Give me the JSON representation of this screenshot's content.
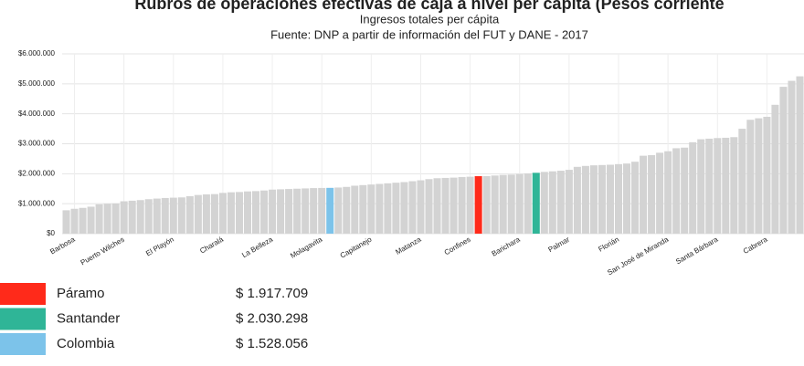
{
  "chart_data": {
    "type": "bar",
    "title": "Rubros de operaciones efectivas de caja a nivel per cápita (Pesos corriente",
    "subtitle": "Ingresos totales per cápita",
    "source": "Fuente: DNP a partir de información del FUT y DANE - 2017",
    "categories": [
      null,
      "Barbosa",
      null,
      null,
      null,
      null,
      null,
      "Puerto Wilches",
      null,
      null,
      null,
      null,
      null,
      "El Playón",
      null,
      null,
      null,
      null,
      null,
      "Charalá",
      null,
      null,
      null,
      null,
      null,
      "La Belleza",
      null,
      null,
      null,
      null,
      null,
      "Molagavita",
      null,
      null,
      null,
      null,
      null,
      "Capitanejo",
      null,
      null,
      null,
      null,
      null,
      "Matanza",
      null,
      null,
      null,
      null,
      null,
      "Confines",
      null,
      null,
      null,
      null,
      null,
      "Barichara",
      null,
      null,
      null,
      null,
      null,
      "Palmar",
      null,
      null,
      null,
      null,
      null,
      "Florián",
      null,
      null,
      null,
      null,
      null,
      "San José de Miranda",
      null,
      null,
      null,
      null,
      null,
      "Santa Bárbara",
      null,
      null,
      null,
      null,
      null,
      "Cabrera",
      null,
      null,
      null,
      null
    ],
    "values": [
      780000,
      830000,
      860000,
      900000,
      980000,
      1000000,
      1010000,
      1080000,
      1100000,
      1120000,
      1150000,
      1170000,
      1190000,
      1200000,
      1210000,
      1250000,
      1290000,
      1310000,
      1320000,
      1360000,
      1380000,
      1390000,
      1410000,
      1420000,
      1440000,
      1470000,
      1480000,
      1490000,
      1500000,
      1510000,
      1520000,
      1525000,
      1528056,
      1540000,
      1560000,
      1600000,
      1620000,
      1640000,
      1660000,
      1680000,
      1700000,
      1720000,
      1750000,
      1780000,
      1820000,
      1850000,
      1860000,
      1870000,
      1890000,
      1900000,
      1917709,
      1920000,
      1940000,
      1960000,
      1970000,
      1990000,
      2010000,
      2030298,
      2060000,
      2080000,
      2100000,
      2130000,
      2230000,
      2260000,
      2280000,
      2290000,
      2300000,
      2320000,
      2340000,
      2400000,
      2600000,
      2620000,
      2700000,
      2750000,
      2850000,
      2870000,
      3050000,
      3150000,
      3170000,
      3190000,
      3200000,
      3220000,
      3500000,
      3800000,
      3850000,
      3900000,
      4300000,
      4900000,
      5100000,
      5250000
    ],
    "colors": [
      "#d3d3d3",
      "#d3d3d3",
      "#d3d3d3",
      "#d3d3d3",
      "#d3d3d3",
      "#d3d3d3",
      "#d3d3d3",
      "#d3d3d3",
      "#d3d3d3",
      "#d3d3d3",
      "#d3d3d3",
      "#d3d3d3",
      "#d3d3d3",
      "#d3d3d3",
      "#d3d3d3",
      "#d3d3d3",
      "#d3d3d3",
      "#d3d3d3",
      "#d3d3d3",
      "#d3d3d3",
      "#d3d3d3",
      "#d3d3d3",
      "#d3d3d3",
      "#d3d3d3",
      "#d3d3d3",
      "#d3d3d3",
      "#d3d3d3",
      "#d3d3d3",
      "#d3d3d3",
      "#d3d3d3",
      "#d3d3d3",
      "#d3d3d3",
      "#7cc3ea",
      "#d3d3d3",
      "#d3d3d3",
      "#d3d3d3",
      "#d3d3d3",
      "#d3d3d3",
      "#d3d3d3",
      "#d3d3d3",
      "#d3d3d3",
      "#d3d3d3",
      "#d3d3d3",
      "#d3d3d3",
      "#d3d3d3",
      "#d3d3d3",
      "#d3d3d3",
      "#d3d3d3",
      "#d3d3d3",
      "#d3d3d3",
      "#ff2a1a",
      "#d3d3d3",
      "#d3d3d3",
      "#d3d3d3",
      "#d3d3d3",
      "#d3d3d3",
      "#d3d3d3",
      "#2fb597",
      "#d3d3d3",
      "#d3d3d3",
      "#d3d3d3",
      "#d3d3d3",
      "#d3d3d3",
      "#d3d3d3",
      "#d3d3d3",
      "#d3d3d3",
      "#d3d3d3",
      "#d3d3d3",
      "#d3d3d3",
      "#d3d3d3",
      "#d3d3d3",
      "#d3d3d3",
      "#d3d3d3",
      "#d3d3d3",
      "#d3d3d3",
      "#d3d3d3",
      "#d3d3d3",
      "#d3d3d3",
      "#d3d3d3",
      "#d3d3d3",
      "#d3d3d3",
      "#d3d3d3",
      "#d3d3d3",
      "#d3d3d3",
      "#d3d3d3",
      "#d3d3d3",
      "#d3d3d3",
      "#d3d3d3",
      "#d3d3d3",
      "#d3d3d3"
    ],
    "ylim": [
      0,
      6000000
    ],
    "yticks": [
      {
        "value": 0,
        "label": "$0"
      },
      {
        "value": 1000000,
        "label": "$1.000.000"
      },
      {
        "value": 2000000,
        "label": "$2.000.000"
      },
      {
        "value": 3000000,
        "label": "$3.000.000"
      },
      {
        "value": 4000000,
        "label": "$4.000.000"
      },
      {
        "value": 5000000,
        "label": "$5.000.000"
      },
      {
        "value": 6000000,
        "label": "$6.000.000"
      }
    ],
    "grid": true,
    "legend": {
      "names": [
        "Páramo",
        "Santander",
        "Colombia"
      ],
      "colors": [
        "#ff2a1a",
        "#2fb597",
        "#7cc3ea"
      ],
      "values": [
        1917709,
        2030298,
        1528056
      ],
      "value_labels": [
        "$ 1.917.709",
        "$ 2.030.298",
        "$ 1.528.056"
      ]
    }
  }
}
